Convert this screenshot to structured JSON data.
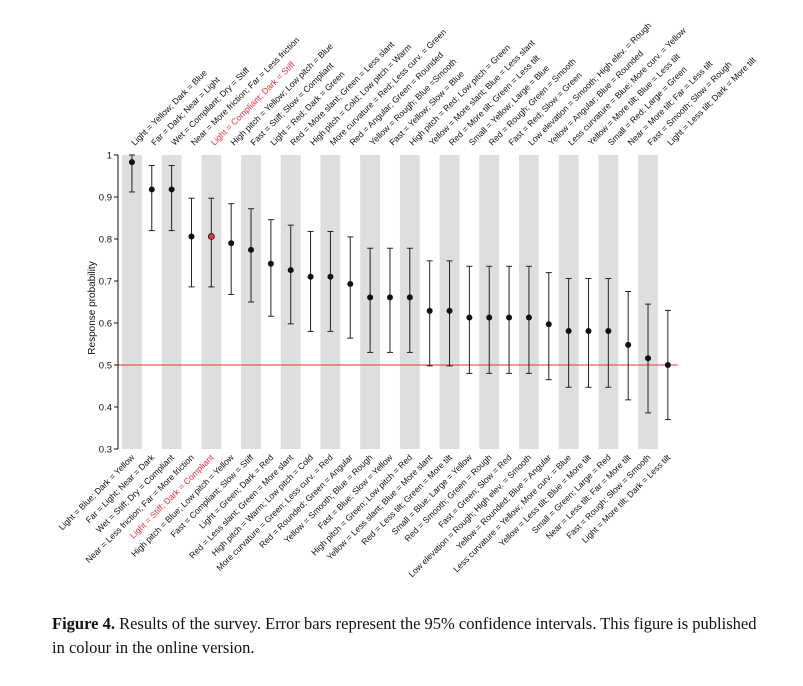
{
  "figure": {
    "caption_label": "Figure 4.",
    "caption_text": " Results of the survey. Error bars represent the 95% confidence intervals. This figure is published in colour in the online version."
  },
  "chart_data": {
    "type": "scatter",
    "ylabel": "Response probability",
    "ylim": [
      0.3,
      1.0
    ],
    "yticks": [
      0.3,
      0.4,
      0.5,
      0.6,
      0.7,
      0.8,
      0.9,
      1
    ],
    "reference_line": 0.5,
    "reference_line_color": "#e8313b",
    "highlight_color": "#e8313b",
    "point_color": "#111111",
    "bottom_labels": [
      "Light = Blue; Dark = Yellow",
      "Far = Light; Near = Dark",
      "Wet = Stiff; Dry = Compliant",
      "Near = Less friction; Far = More friction",
      "Light = Stiff; Dark = Compliant",
      "High pitch = Blue; Low pitch = Yellow",
      "Fast = Compliant; Slow = Stiff",
      "Light = Green; Dark = Red",
      "Red = Less slant; Green = More slant",
      "High pitch = Warm; Low pitch = Cold",
      "More curvature = Green; Less curv. = Red",
      "Red = Rounded; Green = Angular",
      "Yellow = Smooth; Blue = Rough",
      "Fast = Blue; Slow = Yellow",
      "High pitch = Green; Low pitch = Red",
      "Yellow = Less slant; Blue = More slant",
      "Red = Less tilt; Green = More tilt",
      "Small = Blue; Large = Yellow",
      "Red = Smooth; Green = Rough",
      "Fast = Green; Slow = Red",
      "Low elevation = Rough; High elev. = Smooth",
      "Yellow = Rounded; Blue = Angular",
      "Less curvature = Yellow; More curv. = Blue",
      "Yellow = Less tilt; Blue = More tilt",
      "Small = Green; Large = Red",
      "Near = Less tilt; Far = More tilt",
      "Fast = Rough; Slow = Smooth",
      "Light = More tilt; Dark = Less tilt"
    ],
    "top_labels": [
      "Light = Yellow; Dark = Blue",
      "Far = Dark; Near = Light",
      "Wet = Compliant; Dry = Stiff",
      "Near = More friction; Far = Less friction",
      "Light = Compliant; Dark = Stiff",
      "High pitch = Yellow; Low pitch = Blue",
      "Fast = Stiff; Slow = Compliant",
      "Light = Red; Dark = Green",
      "Red = More slant; Green = Less slant",
      "High pitch = Cold; Low pitch = Warm",
      "More curvature = Red; Less curv. = Green",
      "Red = Angular; Green = Rounded",
      "Yellow = Rough; Blue =Smooth",
      "Fast = Yellow; Slow = Blue",
      "High pitch = Red; Low pitch = Green",
      "Yellow = More slant; Blue = Less slant",
      "Red = More tilt; Green = Less tilt",
      "Small = Yellow; Large = Blue",
      "Red = Rough; Green = Smooth",
      "Fast = Red; Slow = Green",
      "Low elevation = Smooth; High elev. = Rough",
      "Yellow = Angular; Blue = Rounded",
      "Less curvature = Blue; More curv. = Yellow",
      "Yellow = More tilt; Blue = Less tilt",
      "Small = Red; Large = Green",
      "Near = More tilt; Far = Less tilt",
      "Fast = Smooth; Slow = Rough",
      "Light = Less tilt; Dark = More tilt"
    ],
    "highlight_index": 4,
    "values": [
      0.983,
      0.918,
      0.918,
      0.806,
      0.806,
      0.79,
      0.774,
      0.741,
      0.726,
      0.71,
      0.71,
      0.693,
      0.661,
      0.661,
      0.661,
      0.629,
      0.629,
      0.613,
      0.613,
      0.613,
      0.613,
      0.597,
      0.581,
      0.581,
      0.581,
      0.548,
      0.516,
      0.5
    ],
    "ci_low": [
      0.912,
      0.82,
      0.82,
      0.686,
      0.686,
      0.668,
      0.65,
      0.616,
      0.598,
      0.58,
      0.58,
      0.564,
      0.53,
      0.53,
      0.53,
      0.498,
      0.498,
      0.48,
      0.48,
      0.48,
      0.48,
      0.465,
      0.447,
      0.447,
      0.447,
      0.417,
      0.386,
      0.37
    ],
    "ci_high": [
      1.0,
      0.975,
      0.975,
      0.897,
      0.897,
      0.884,
      0.872,
      0.846,
      0.833,
      0.818,
      0.818,
      0.805,
      0.778,
      0.778,
      0.778,
      0.748,
      0.748,
      0.735,
      0.735,
      0.735,
      0.735,
      0.72,
      0.706,
      0.706,
      0.706,
      0.675,
      0.645,
      0.63
    ]
  }
}
